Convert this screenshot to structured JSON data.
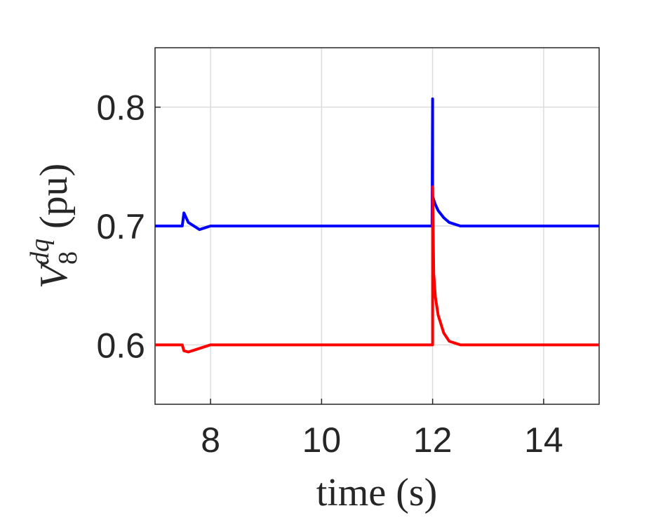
{
  "chart_data": {
    "type": "line",
    "x_label": "time (s)",
    "y_label": {
      "symbol": "V",
      "subscript": "8",
      "superscript": "dq",
      "unit": "(pu)"
    },
    "x": [
      7,
      7.49,
      7.52,
      7.6,
      7.8,
      8.0,
      10,
      11.99,
      12.0,
      12.0,
      12.02,
      12.05,
      12.1,
      12.2,
      12.3,
      12.5,
      15
    ],
    "series": [
      {
        "color": "#0000ff",
        "values": [
          0.7,
          0.7,
          0.711,
          0.703,
          0.697,
          0.7,
          0.7,
          0.7,
          0.807,
          0.725,
          0.722,
          0.718,
          0.713,
          0.707,
          0.703,
          0.7,
          0.7
        ]
      },
      {
        "color": "#ff0000",
        "values": [
          0.6,
          0.6,
          0.595,
          0.594,
          0.597,
          0.6,
          0.6,
          0.6,
          0.6,
          0.733,
          0.66,
          0.64,
          0.625,
          0.61,
          0.603,
          0.6,
          0.6
        ]
      }
    ],
    "xlim": [
      7,
      15
    ],
    "xticks": [
      8,
      10,
      12,
      14
    ],
    "ylim": [
      0.55,
      0.85
    ],
    "yticks": [
      0.6,
      0.7,
      0.8
    ],
    "grid": true
  }
}
